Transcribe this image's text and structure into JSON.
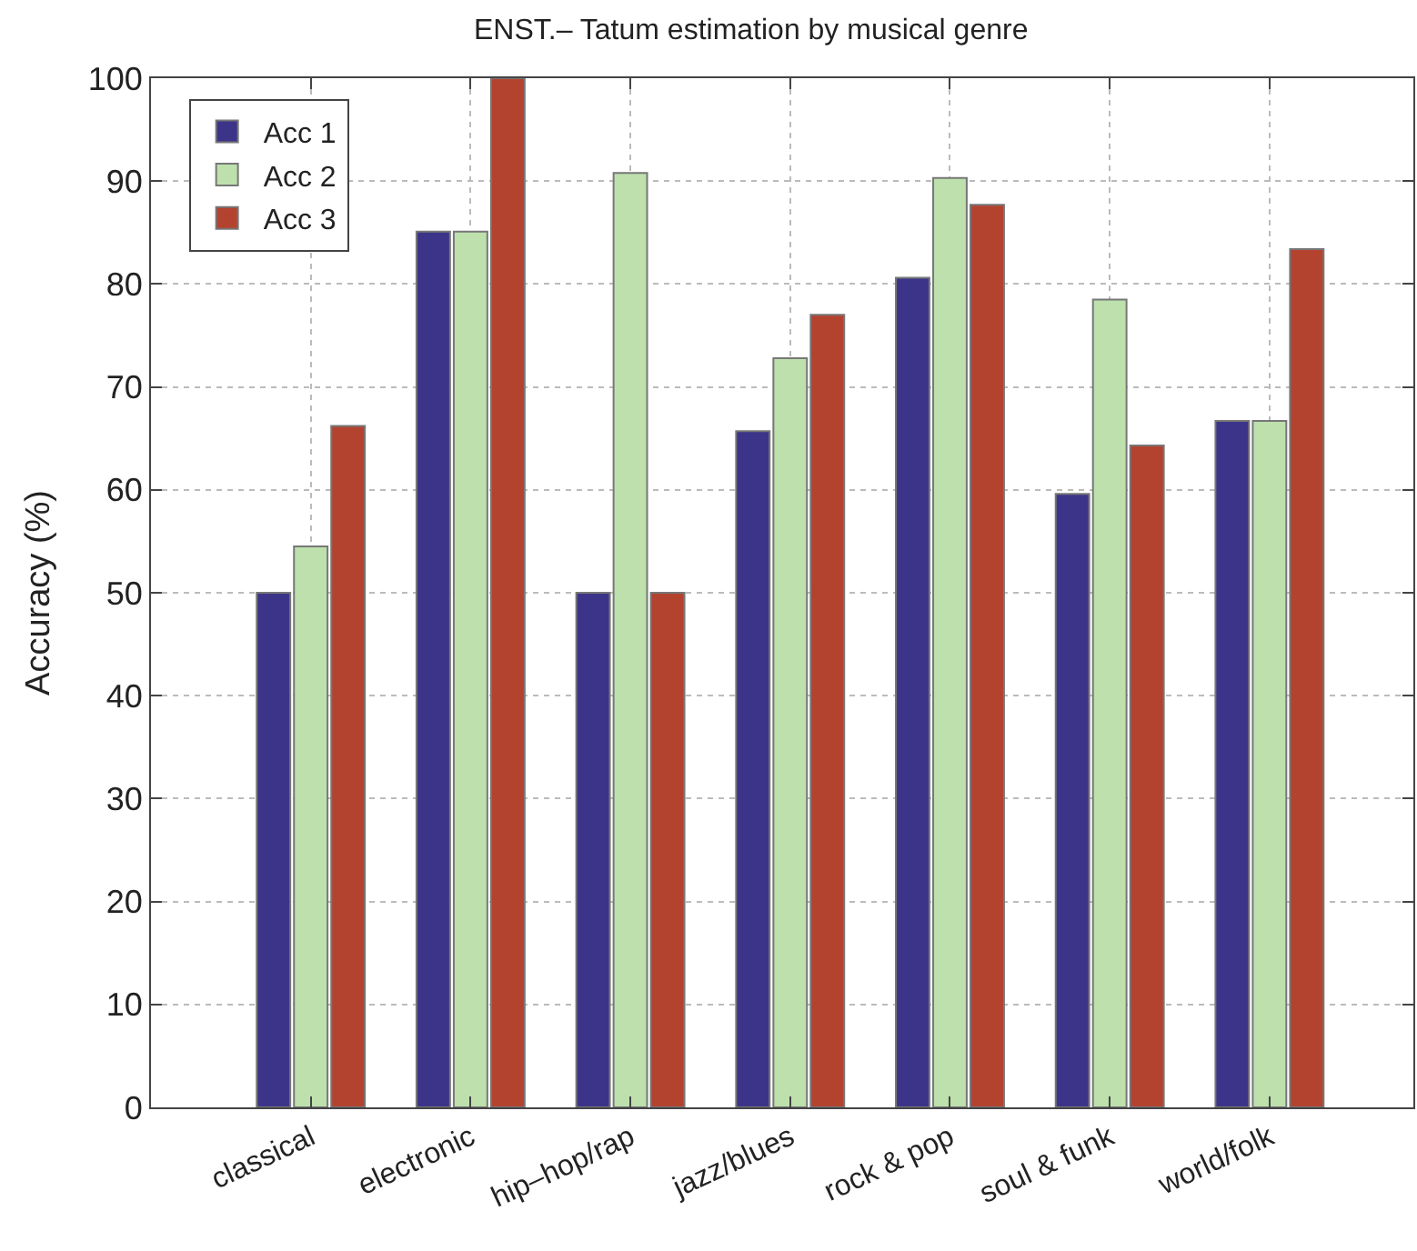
{
  "chart_data": {
    "type": "bar",
    "title": "ENST.– Tatum estimation by musical genre",
    "ylabel": "Accuracy (%)",
    "categories": [
      "classical",
      "electronic",
      "hip–hop/rap",
      "jazz/blues",
      "rock & pop",
      "soul & funk",
      "world/folk"
    ],
    "series": [
      {
        "name": "Acc 1",
        "color": "#3c3489",
        "values": [
          50,
          85.1,
          50,
          65.7,
          80.6,
          59.6,
          66.7
        ]
      },
      {
        "name": "Acc 2",
        "color": "#bde0ad",
        "values": [
          54.5,
          85.1,
          90.8,
          72.8,
          90.3,
          78.5,
          66.7
        ]
      },
      {
        "name": "Acc 3",
        "color": "#b3432f",
        "values": [
          66.2,
          100,
          50,
          77,
          87.7,
          64.3,
          83.4
        ]
      }
    ],
    "ylim": [
      0,
      100
    ],
    "yticks": [
      0,
      10,
      20,
      30,
      40,
      50,
      60,
      70,
      80,
      90,
      100
    ],
    "grid": true,
    "legend": "top left"
  }
}
